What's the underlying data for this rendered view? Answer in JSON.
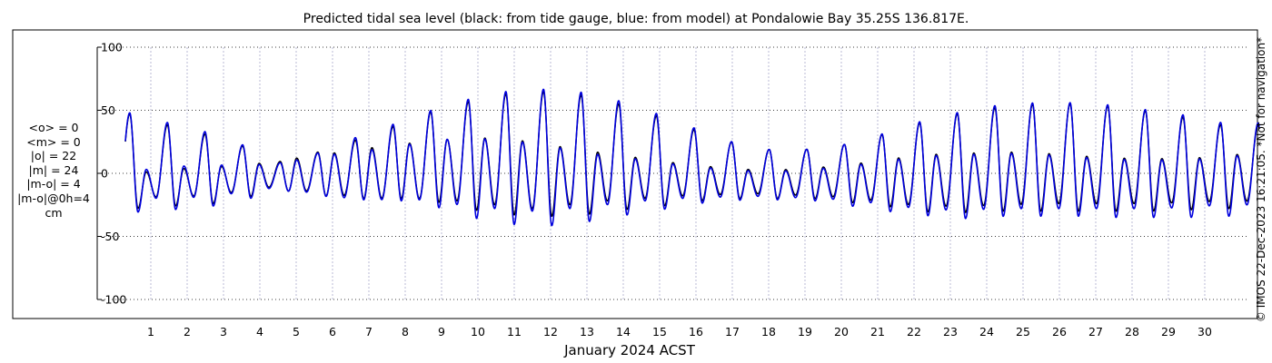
{
  "title": "Predicted tidal sea level (black: from tide gauge, blue: from model) at Pondalowie Bay 35.25S 136.817E.",
  "side_note": "© IMOS 22-Dec-2023 16:21:05. *Not for navigation*",
  "stats": [
    "<o> = 0",
    "<m> = 0",
    "|o| = 22",
    "|m| = 24",
    "|m-o| = 4",
    "|m-o|@0h=4",
    "cm"
  ],
  "colors": {
    "observed": "#000000",
    "model": "#0000dd",
    "grid": "#aaaacc"
  },
  "chart_data": {
    "type": "line",
    "title": "Predicted tidal sea level (black: from tide gauge, blue: from model) at Pondalowie Bay 35.25S 136.817E.",
    "xlabel": "January 2024 ACST",
    "ylabel": "",
    "unit": "cm",
    "x_ticks": [
      "1",
      "2",
      "3",
      "4",
      "5",
      "6",
      "7",
      "8",
      "9",
      "10",
      "11",
      "12",
      "13",
      "14",
      "15",
      "16",
      "17",
      "18",
      "19",
      "20",
      "21",
      "22",
      "23",
      "24",
      "25",
      "26",
      "27",
      "28",
      "29",
      "30"
    ],
    "xlim": [
      0.3,
      31.5
    ],
    "ylim": [
      -100,
      100
    ],
    "y_ticks": [
      100,
      50,
      0,
      -50,
      -100
    ],
    "y_tick_labels": [
      "100",
      "50",
      "0",
      "-50",
      "-100"
    ],
    "grid": true,
    "series": [
      {
        "name": "tide gauge",
        "color": "#000000",
        "daily_envelope": {
          "day": [
            0.5,
            1.5,
            2.5,
            3.5,
            4.5,
            5.5,
            6.5,
            7.5,
            8.5,
            9.5,
            10.5,
            11.5,
            12.5,
            13.5,
            14.5,
            15.5,
            16.5,
            17.5,
            18.5,
            19.5,
            20.5,
            21.5,
            22.5,
            23.5,
            24.5,
            25.5,
            26.5,
            27.5,
            28.5,
            29.5,
            30.5
          ],
          "high1": [
            47,
            38,
            31,
            22,
            9,
            16,
            25,
            35,
            47,
            55,
            62,
            65,
            64,
            58,
            50,
            39,
            29,
            20,
            18,
            20,
            25,
            34,
            43,
            49,
            53,
            55,
            55,
            53,
            49,
            44,
            38
          ],
          "low1": [
            -28,
            -26,
            -25,
            -20,
            -13,
            -17,
            -20,
            -20,
            -20,
            -27,
            -32,
            -34,
            -34,
            -31,
            -27,
            -25,
            -20,
            -20,
            -20,
            -20,
            -24,
            -27,
            -31,
            -31,
            -30,
            -30,
            -30,
            -30,
            -30,
            -29,
            -28
          ],
          "high2": [
            0,
            3,
            5,
            6,
            10,
            14,
            18,
            22,
            25,
            28,
            28,
            25,
            20,
            16,
            12,
            8,
            5,
            3,
            3,
            5,
            8,
            12,
            15,
            16,
            17,
            16,
            14,
            12,
            12,
            11,
            15
          ],
          "low2": [
            -20,
            -18,
            -18,
            -14,
            -10,
            -15,
            -18,
            -20,
            -20,
            -22,
            -25,
            -28,
            -25,
            -22,
            -20,
            -18,
            -17,
            -16,
            -17,
            -18,
            -20,
            -24,
            -26,
            -26,
            -25,
            -24,
            -24,
            -24,
            -24,
            -23,
            -22
          ]
        }
      },
      {
        "name": "model",
        "color": "#0000dd",
        "daily_envelope": {
          "day": [
            0.5,
            1.5,
            2.5,
            3.5,
            4.5,
            5.5,
            6.5,
            7.5,
            8.5,
            9.5,
            10.5,
            11.5,
            12.5,
            13.5,
            14.5,
            15.5,
            16.5,
            17.5,
            18.5,
            19.5,
            20.5,
            21.5,
            22.5,
            23.5,
            24.5,
            25.5,
            26.5,
            27.5,
            28.5,
            29.5,
            30.5
          ],
          "high1": [
            48,
            40,
            33,
            23,
            8,
            15,
            27,
            37,
            48,
            57,
            64,
            67,
            66,
            61,
            52,
            41,
            30,
            20,
            18,
            20,
            25,
            35,
            44,
            50,
            55,
            56,
            56,
            54,
            50,
            46,
            40
          ],
          "low1": [
            -31,
            -29,
            -27,
            -22,
            -13,
            -17,
            -21,
            -21,
            -23,
            -33,
            -39,
            -42,
            -41,
            -36,
            -31,
            -27,
            -22,
            -21,
            -21,
            -22,
            -27,
            -31,
            -34,
            -36,
            -34,
            -34,
            -34,
            -35,
            -35,
            -35,
            -34
          ],
          "high2": [
            2,
            5,
            7,
            6,
            8,
            13,
            17,
            20,
            25,
            28,
            27,
            24,
            19,
            14,
            11,
            7,
            4,
            2,
            2,
            4,
            7,
            11,
            14,
            15,
            16,
            15,
            13,
            11,
            11,
            10,
            14
          ],
          "low2": [
            -21,
            -19,
            -19,
            -15,
            -11,
            -16,
            -20,
            -21,
            -21,
            -25,
            -28,
            -30,
            -28,
            -25,
            -22,
            -20,
            -19,
            -18,
            -19,
            -20,
            -22,
            -26,
            -29,
            -29,
            -28,
            -28,
            -28,
            -28,
            -28,
            -27,
            -25
          ]
        }
      }
    ]
  }
}
